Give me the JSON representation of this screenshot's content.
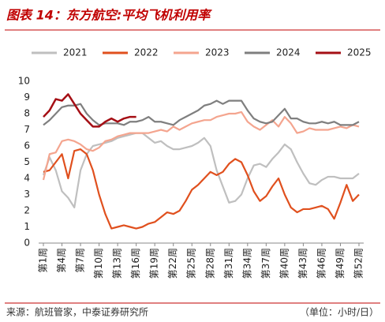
{
  "chart_data": {
    "type": "line",
    "title": "图表 14：东方航空:平均飞机利用率",
    "source": "来源：航班管家，中泰证券研究所",
    "unit": "（单位：小时/日）",
    "categories": [
      "第1周",
      null,
      null,
      "第4周",
      null,
      null,
      "第7周",
      null,
      null,
      "第10周",
      null,
      null,
      "第13周",
      null,
      null,
      "第16周",
      null,
      null,
      "第19周",
      null,
      null,
      "第22周",
      null,
      null,
      "第25周",
      null,
      null,
      "第28周",
      null,
      null,
      "第31周",
      null,
      null,
      "第34周",
      null,
      null,
      "第37周",
      null,
      null,
      "第40周",
      null,
      null,
      "第43周",
      null,
      null,
      "第46周",
      null,
      null,
      "第49周",
      null,
      null,
      "第52周"
    ],
    "ylim": [
      0,
      10
    ],
    "yticks": [
      0,
      1,
      2,
      3,
      4,
      5,
      6,
      7,
      8,
      9,
      10
    ],
    "grid": false,
    "legend": "top",
    "series": [
      {
        "name": "2021",
        "color": "#bfbfbf",
        "values": [
          4.2,
          5.3,
          4.5,
          3.2,
          2.8,
          2.2,
          4.5,
          5.5,
          6.0,
          6.1,
          6.2,
          6.3,
          6.5,
          6.6,
          6.7,
          6.8,
          6.8,
          6.5,
          6.2,
          6.3,
          6.0,
          5.8,
          5.8,
          5.9,
          6.0,
          6.2,
          6.5,
          6.0,
          4.5,
          3.5,
          2.5,
          2.6,
          3.0,
          4.0,
          4.8,
          4.9,
          4.7,
          5.2,
          5.6,
          6.1,
          5.8,
          5.0,
          4.3,
          3.7,
          3.6,
          3.9,
          4.1,
          4.1,
          4.0,
          4.0,
          4.0,
          4.3
        ]
      },
      {
        "name": "2022",
        "color": "#e0501e",
        "values": [
          4.4,
          4.5,
          5.0,
          5.5,
          4.0,
          5.7,
          5.8,
          5.5,
          4.5,
          3.0,
          1.8,
          0.9,
          1.0,
          1.1,
          1.0,
          0.9,
          1.0,
          1.2,
          1.3,
          1.6,
          1.9,
          1.8,
          2.0,
          2.6,
          3.3,
          3.6,
          4.0,
          4.4,
          4.2,
          4.4,
          4.9,
          5.2,
          5.0,
          4.2,
          3.2,
          2.6,
          2.9,
          3.5,
          4.0,
          3.0,
          2.2,
          1.9,
          2.1,
          2.1,
          2.2,
          2.3,
          2.1,
          1.5,
          2.5,
          3.6,
          2.6,
          3.0
        ]
      },
      {
        "name": "2023",
        "color": "#f4a58f",
        "values": [
          3.9,
          5.5,
          5.6,
          6.3,
          6.4,
          6.3,
          6.1,
          5.8,
          5.7,
          5.9,
          6.3,
          6.4,
          6.6,
          6.7,
          6.8,
          6.8,
          6.8,
          6.8,
          6.9,
          7.0,
          6.9,
          7.2,
          7.0,
          7.2,
          7.4,
          7.5,
          7.6,
          7.6,
          7.8,
          7.9,
          8.0,
          8.0,
          8.1,
          7.5,
          7.2,
          7.0,
          7.3,
          7.6,
          7.2,
          7.8,
          7.4,
          6.8,
          6.9,
          7.1,
          7.0,
          7.0,
          7.0,
          7.1,
          7.2,
          7.1,
          7.3,
          7.2
        ]
      },
      {
        "name": "2024",
        "color": "#7f7f7f",
        "values": [
          7.3,
          7.6,
          8.0,
          8.4,
          8.5,
          8.5,
          8.6,
          8.0,
          7.6,
          7.3,
          7.4,
          7.4,
          7.4,
          7.3,
          7.5,
          7.5,
          7.6,
          7.8,
          7.5,
          7.5,
          7.4,
          7.3,
          7.6,
          7.8,
          8.0,
          8.2,
          8.5,
          8.6,
          8.8,
          8.6,
          8.8,
          8.8,
          8.8,
          8.2,
          7.7,
          7.5,
          7.4,
          7.5,
          7.9,
          8.3,
          7.7,
          7.7,
          7.5,
          7.4,
          7.4,
          7.5,
          7.4,
          7.5,
          7.3,
          7.3,
          7.3,
          7.5
        ]
      },
      {
        "name": "2025",
        "color": "#a50f15",
        "values": [
          7.8,
          8.2,
          8.9,
          8.8,
          9.2,
          8.6,
          8.0,
          7.6,
          7.2,
          7.2,
          7.5,
          7.7,
          7.5,
          7.7,
          7.8,
          7.8,
          null,
          null,
          null,
          null,
          null,
          null,
          null,
          null,
          null,
          null,
          null,
          null,
          null,
          null,
          null,
          null,
          null,
          null,
          null,
          null,
          null,
          null,
          null,
          null,
          null,
          null,
          null,
          null,
          null,
          null,
          null,
          null,
          null,
          null,
          null,
          null
        ]
      }
    ]
  }
}
